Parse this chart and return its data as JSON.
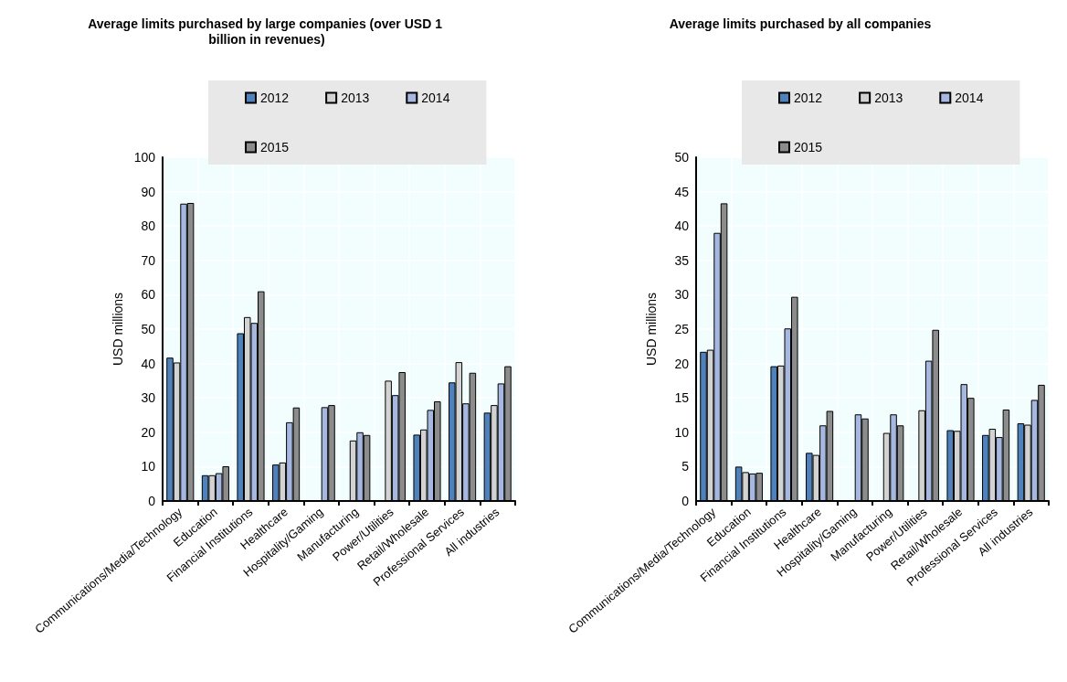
{
  "chart_data": [
    {
      "type": "bar",
      "title": "Average limits purchased by large companies (over USD 1 billion in revenues)",
      "ylabel": "USD millions",
      "categories": [
        "Communications/Media/Technology",
        "Education",
        "Financial Institutions",
        "Healthcare",
        "Hospitality/Gaming",
        "Manufacturing",
        "Power/Utilities",
        "Retail/Wholesale",
        "Professional Services",
        "All industries"
      ],
      "series": [
        {
          "name": "2012",
          "color": "#4f81bd",
          "values": [
            41.7,
            7.5,
            48.8,
            10.6,
            null,
            null,
            null,
            19.3,
            34.5,
            25.7
          ]
        },
        {
          "name": "2013",
          "color": "#d3d3d3",
          "values": [
            40.3,
            7.5,
            53.5,
            11.2,
            null,
            17.6,
            35.0,
            20.8,
            40.4,
            27.9
          ]
        },
        {
          "name": "2014",
          "color": "#a6b8e0",
          "values": [
            86.5,
            8.1,
            51.8,
            22.9,
            27.3,
            20.0,
            30.8,
            26.5,
            28.4,
            34.2
          ]
        },
        {
          "name": "2015",
          "color": "#8c8c8c",
          "values": [
            86.7,
            10.1,
            61.0,
            27.2,
            27.9,
            19.2,
            37.5,
            29.0,
            37.3,
            39.2
          ]
        }
      ],
      "ylim": [
        0,
        100
      ],
      "yticks": [
        0,
        10,
        20,
        30,
        40,
        50,
        60,
        70,
        80,
        90,
        100
      ],
      "grid": true,
      "legend": "top"
    },
    {
      "type": "bar",
      "title": "Average limits purchased by all companies",
      "ylabel": "USD millions",
      "categories": [
        "Communications/Media/Technology",
        "Education",
        "Financial Institutions",
        "Healthcare",
        "Hospitality/Gaming",
        "Manufacturing",
        "Power/Utilities",
        "Retail/Wholesale",
        "Professional Services",
        "All industries"
      ],
      "series": [
        {
          "name": "2012",
          "color": "#4f81bd",
          "values": [
            21.7,
            5.0,
            19.6,
            7.0,
            null,
            null,
            null,
            10.3,
            9.6,
            11.3
          ]
        },
        {
          "name": "2013",
          "color": "#d3d3d3",
          "values": [
            22.0,
            4.2,
            19.7,
            6.7,
            null,
            9.9,
            13.2,
            10.2,
            10.5,
            11.1
          ]
        },
        {
          "name": "2014",
          "color": "#a6b8e0",
          "values": [
            39.0,
            4.0,
            25.1,
            11.0,
            12.6,
            12.6,
            20.4,
            17.0,
            9.3,
            14.7
          ]
        },
        {
          "name": "2015",
          "color": "#8c8c8c",
          "values": [
            43.3,
            4.1,
            29.7,
            13.1,
            12.0,
            11.0,
            24.9,
            15.0,
            13.3,
            16.9
          ]
        }
      ],
      "ylim": [
        0,
        50
      ],
      "yticks": [
        0,
        5,
        10,
        15,
        20,
        25,
        30,
        35,
        40,
        45,
        50
      ],
      "grid": true,
      "legend": "top"
    }
  ]
}
